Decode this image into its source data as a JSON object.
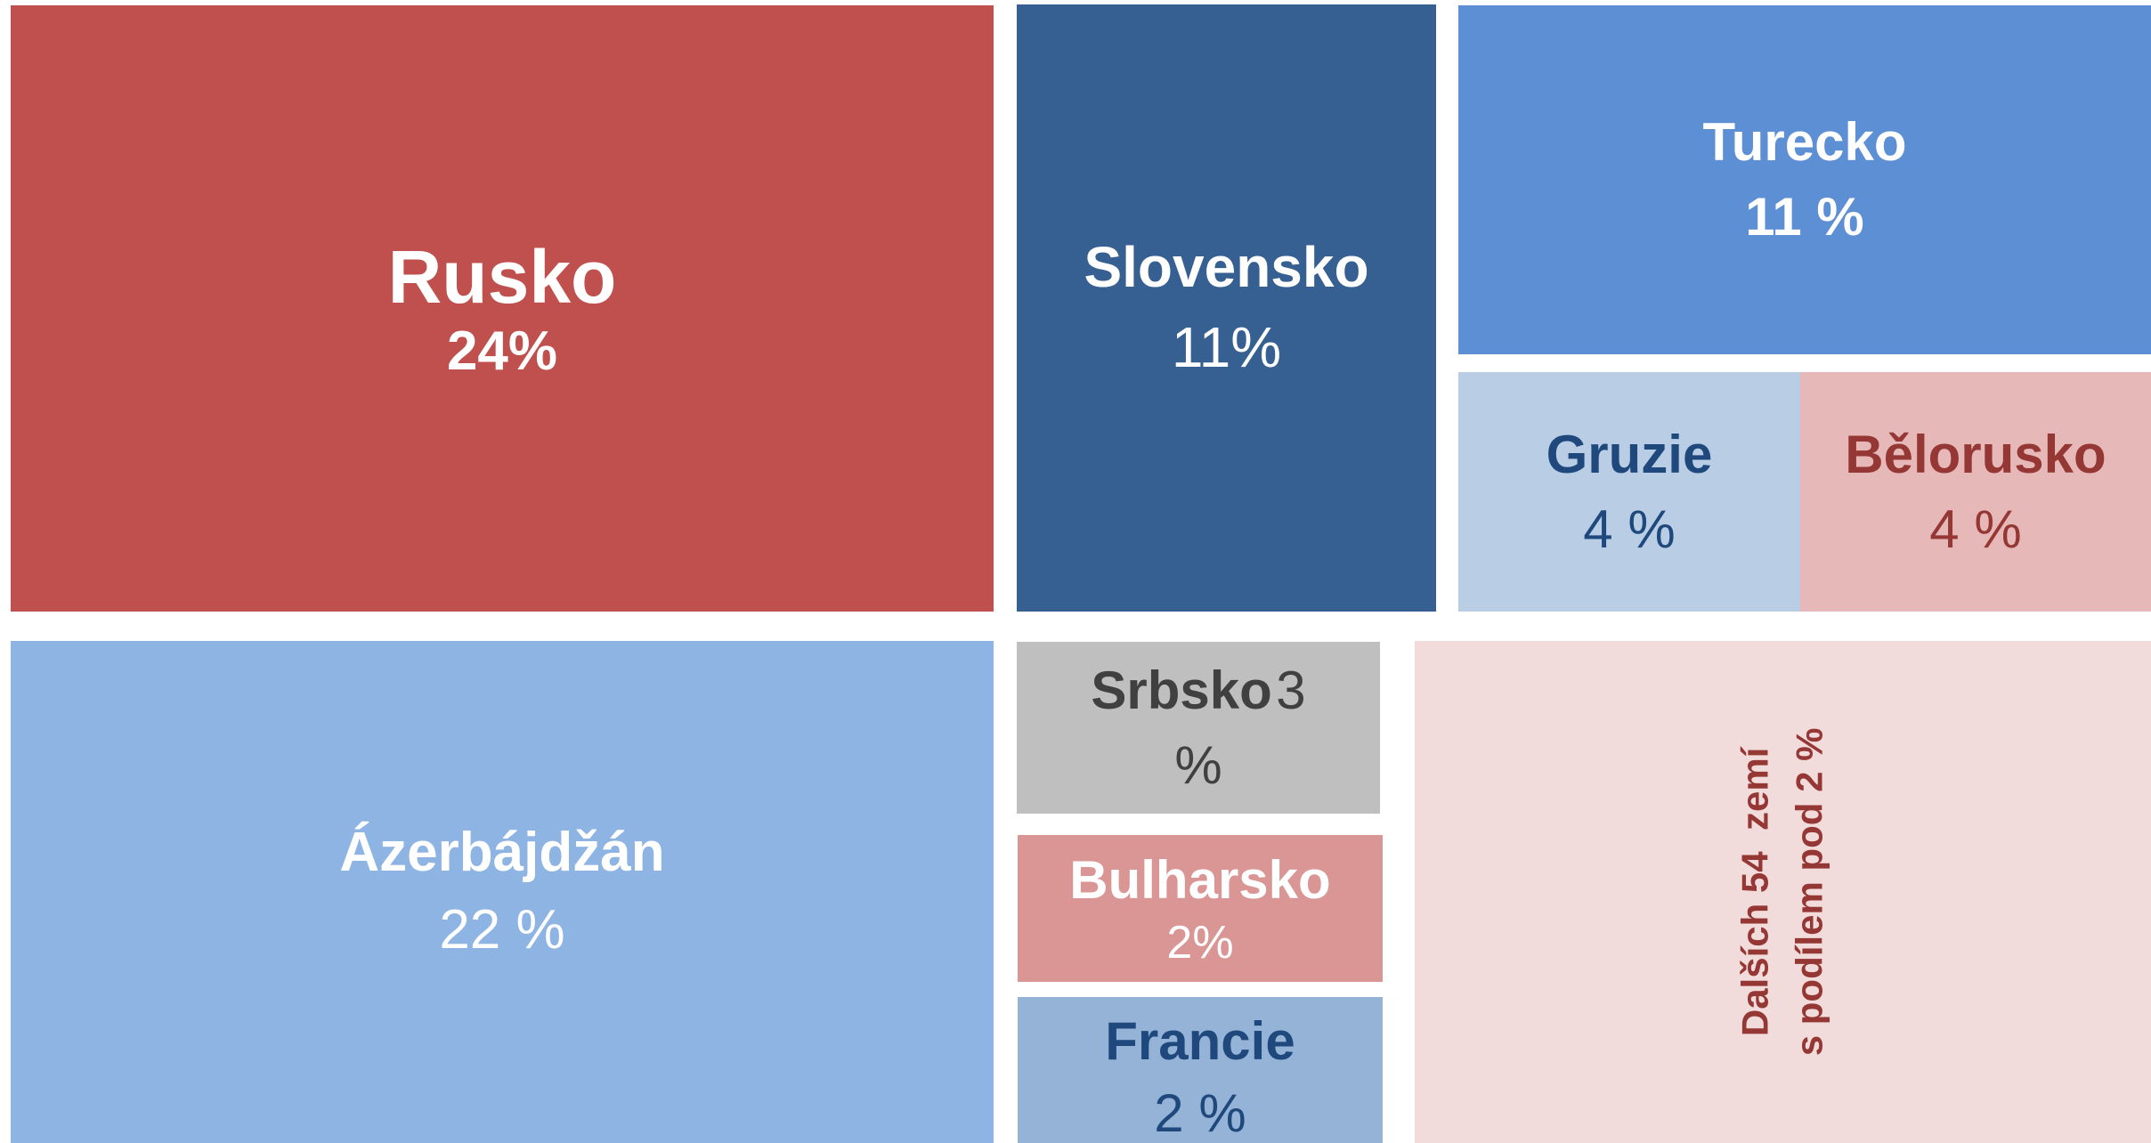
{
  "tiles": [
    {
      "name": "Rusko",
      "share": "24%"
    },
    {
      "name": "Slovensko",
      "share": "11%"
    },
    {
      "name": "Turecko",
      "share": "11 %"
    },
    {
      "name": "Gruzie",
      "share": "4 %"
    },
    {
      "name": "Bělorusko",
      "share": "4 %"
    },
    {
      "name": "Ázerbájdžán",
      "share": "22 %"
    },
    {
      "name": "Srbsko",
      "share": "3 %"
    },
    {
      "name": "Bulharsko",
      "share": "2%"
    },
    {
      "name": "Francie",
      "share": "2 %"
    }
  ],
  "others": {
    "lines": [
      "Dalších 54  zemí",
      "s podílem pod 2 %"
    ]
  }
}
